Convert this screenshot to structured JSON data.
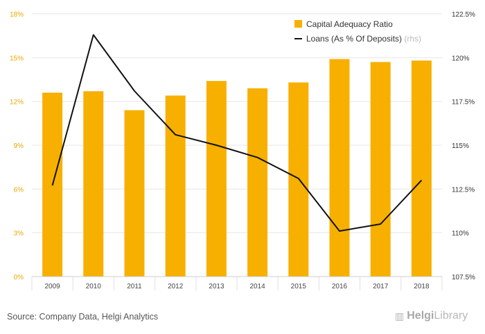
{
  "chart_data": {
    "type": "bar+line",
    "categories": [
      "2009",
      "2010",
      "2011",
      "2012",
      "2013",
      "2014",
      "2015",
      "2016",
      "2017",
      "2018"
    ],
    "series": [
      {
        "name": "Capital Adequacy Ratio",
        "type": "bar",
        "axis": "left",
        "color": "#F7B000",
        "values": [
          12.6,
          12.7,
          11.4,
          12.4,
          13.4,
          12.9,
          13.3,
          14.9,
          14.7,
          14.8
        ]
      },
      {
        "name": "Loans (As % Of Deposits)",
        "name_suffix": "(rhs)",
        "type": "line",
        "axis": "right",
        "color": "#111111",
        "values": [
          112.7,
          121.3,
          118.1,
          115.6,
          115.0,
          114.3,
          113.1,
          110.1,
          110.5,
          113.0
        ]
      }
    ],
    "left_axis": {
      "min": 0,
      "max": 18,
      "step": 3,
      "tick_labels": [
        "0%",
        "3%",
        "6%",
        "9%",
        "12%",
        "15%",
        "18%"
      ],
      "color": "#E8A800"
    },
    "right_axis": {
      "min": 107.5,
      "max": 122.5,
      "step": 2.5,
      "tick_labels": [
        "107.5%",
        "110%",
        "112.5%",
        "115%",
        "117.5%",
        "120%",
        "122.5%"
      ]
    },
    "grid": "horizontal",
    "legend_position": "top-right"
  },
  "footer": {
    "source": "Source: Company Data, Helgi Analytics",
    "brand_part1": "Helgi",
    "brand_part2": "Library"
  }
}
